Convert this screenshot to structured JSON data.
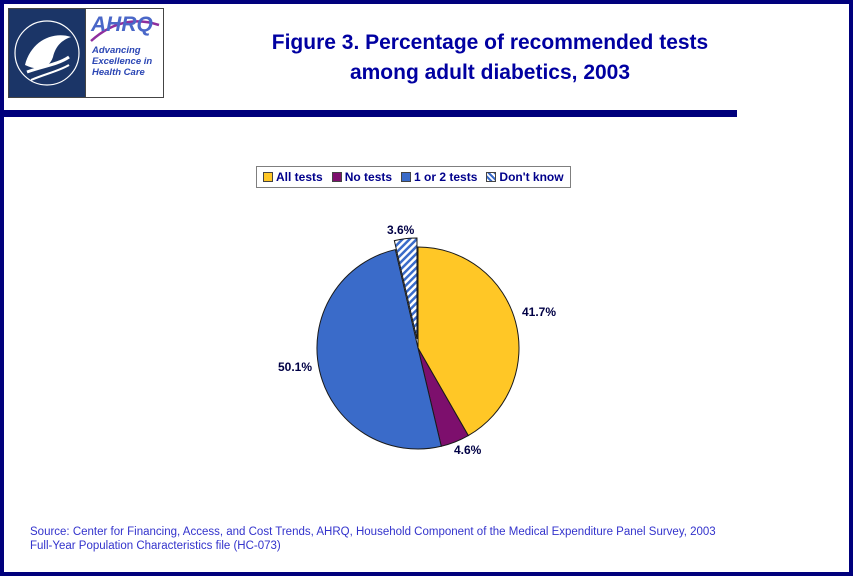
{
  "header": {
    "title_line1": "Figure 3. Percentage of recommended tests",
    "title_line2": "among adult diabetics, 2003",
    "logo": {
      "ahrq_text": "AHRQ",
      "tagline_line1": "Advancing",
      "tagline_line2": "Excellence in",
      "tagline_line3": "Health Care"
    }
  },
  "chart_data": {
    "type": "pie",
    "title": "Figure 3. Percentage of recommended tests among adult diabetics, 2003",
    "legend_position": "top",
    "start_angle_deg": 0,
    "direction": "clockwise",
    "slices": [
      {
        "label": "All tests",
        "value": 41.7,
        "data_label": "41.7%",
        "color": "#FFC726"
      },
      {
        "label": "No tests",
        "value": 4.6,
        "data_label": "4.6%",
        "color": "#7D0F6D"
      },
      {
        "label": "1 or 2 tests",
        "value": 50.1,
        "data_label": "50.1%",
        "color": "#3A6BC9"
      },
      {
        "label": "Don't know",
        "value": 3.6,
        "data_label": "3.6%",
        "color": "#3A6BC9",
        "pattern": "diagonal-stripes",
        "exploded": true
      }
    ],
    "theme": {
      "navy": "#00007C",
      "title_blue": "#0000A1",
      "label_navy": "#000045",
      "source_blue": "#3333CC"
    }
  },
  "source": {
    "line1": "Source: Center for Financing, Access, and Cost Trends, AHRQ, Household Component of the Medical Expenditure Panel Survey, 2003",
    "line2": "Full-Year Population Characteristics file (HC-073)"
  }
}
